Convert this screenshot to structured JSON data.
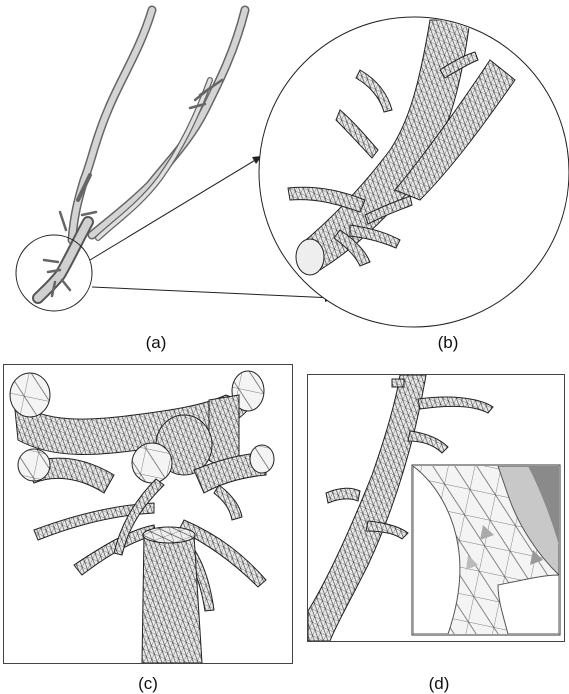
{
  "figure": {
    "captions": {
      "a": "(a)",
      "b": "(b)",
      "c": "(c)",
      "d": "(d)"
    }
  },
  "colors": {
    "vessel_fill": "#d9d9d9",
    "mesh_line": "#333333",
    "frame": "#444444"
  }
}
